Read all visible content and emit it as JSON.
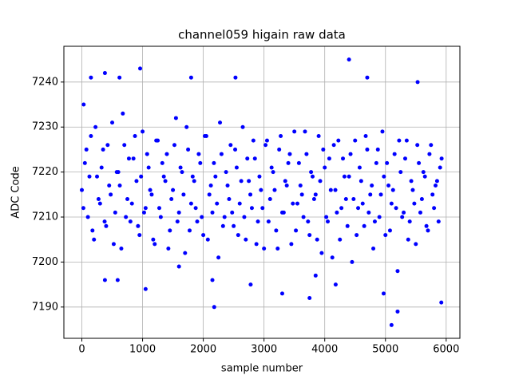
{
  "chart_data": {
    "type": "scatter",
    "title": "channel059 higain raw data",
    "x_label": "sample number",
    "y_label": "ADC Code",
    "color": "#0000ff",
    "grid": true,
    "xlim": [
      -296,
      6226
    ],
    "ylim": [
      7183.05,
      7247.95
    ],
    "xticks": [
      0,
      1000,
      2000,
      3000,
      4000,
      5000,
      6000
    ],
    "yticks": [
      7190,
      7200,
      7210,
      7220,
      7230,
      7240
    ],
    "x": [
      0,
      50,
      100,
      150,
      200,
      250,
      300,
      350,
      400,
      450,
      500,
      550,
      600,
      650,
      700,
      750,
      800,
      850,
      900,
      950,
      1000,
      1050,
      1100,
      1150,
      1200,
      1250,
      1300,
      1350,
      1400,
      1450,
      1500,
      1550,
      1600,
      1650,
      1700,
      1750,
      1800,
      1850,
      1900,
      1950,
      2000,
      2050,
      2100,
      2150,
      2200,
      2250,
      2300,
      2350,
      2400,
      2450,
      2500,
      2550,
      2600,
      2650,
      2700,
      2750,
      2800,
      2850,
      2900,
      2950,
      3000,
      3050,
      3100,
      3150,
      3200,
      3250,
      3300,
      3350,
      3400,
      3450,
      3500,
      3550,
      3600,
      3650,
      3700,
      3750,
      3800,
      3850,
      3900,
      3950,
      4000,
      4050,
      4100,
      4150,
      4200,
      4250,
      4300,
      4350,
      4400,
      4450,
      4500,
      4550,
      4600,
      4650,
      4700,
      4750,
      4800,
      4850,
      4900,
      4950,
      5000,
      5050,
      5100,
      5150,
      5200,
      5250,
      5300,
      5350,
      5400,
      5450,
      5500,
      5550,
      5600,
      5650,
      5700,
      5750,
      5800,
      5850,
      5900,
      25,
      75,
      125,
      175,
      225,
      275,
      325,
      375,
      425,
      475,
      525,
      575,
      625,
      675,
      725,
      775,
      825,
      875,
      925,
      975,
      1025,
      1075,
      1125,
      1175,
      1225,
      1275,
      1325,
      1375,
      1425,
      1475,
      1525,
      1575,
      1625,
      1675,
      1725,
      1775,
      1825,
      1875,
      1925,
      1975,
      2025,
      2075,
      2125,
      2175,
      2225,
      2275,
      2325,
      2375,
      2425,
      2475,
      2525,
      2575,
      2625,
      2675,
      2725,
      2775,
      2825,
      2875,
      2925,
      2975,
      3025,
      3075,
      3125,
      3175,
      3225,
      3275,
      3325,
      3375,
      3425,
      3475,
      3525,
      3575,
      3625,
      3675,
      3725,
      3775,
      3825,
      3875,
      3925,
      3975,
      4025,
      4075,
      4125,
      4175,
      4225,
      4275,
      4325,
      4375,
      4425,
      4475,
      4525,
      4575,
      4625,
      4675,
      4725,
      4775,
      4825,
      4875,
      4925,
      4975,
      5025,
      5075,
      5125,
      5175,
      5225,
      5275,
      5325,
      5375,
      5425,
      5475,
      5525,
      5575,
      5625,
      5675,
      5725,
      5775,
      5825,
      5875,
      5925,
      30,
      150,
      380,
      380,
      590,
      620,
      960,
      1050,
      1800,
      2180,
      2530,
      3750,
      4400,
      5100,
      5200,
      5530,
      5920,
      4970,
      4700,
      3300,
      2150,
      1600,
      3850,
      2780,
      4180
    ],
    "values": [
      7216,
      7222,
      7210,
      7228,
      7205,
      7219,
      7213,
      7225,
      7208,
      7217,
      7231,
      7211,
      7220,
      7203,
      7226,
      7214,
      7209,
      7223,
      7218,
      7206,
      7229,
      7212,
      7221,
      7215,
      7204,
      7227,
      7210,
      7219,
      7224,
      7207,
      7216,
      7232,
      7211,
      7220,
      7202,
      7225,
      7213,
      7218,
      7209,
      7222,
      7206,
      7228,
      7215,
      7211,
      7219,
      7201,
      7224,
      7210,
      7217,
      7226,
      7208,
      7221,
      7213,
      7230,
      7205,
      7218,
      7212,
      7223,
      7209,
      7216,
      7203,
      7227,
      7214,
      7220,
      7207,
      7225,
      7211,
      7218,
      7222,
      7204,
      7229,
      7213,
      7217,
      7210,
      7224,
      7206,
      7219,
      7215,
      7228,
      7202,
      7221,
      7209,
      7216,
      7226,
      7211,
      7205,
      7223,
      7214,
      7219,
      7200,
      7227,
      7212,
      7218,
      7208,
      7225,
      7215,
      7203,
      7222,
      7210,
      7229,
      7206,
      7217,
      7213,
      7224,
      7198,
      7220,
      7211,
      7227,
      7209,
      7216,
      7204,
      7222,
      7214,
      7219,
      7207,
      7226,
      7212,
      7218,
      7221,
      7212,
      7225,
      7219,
      7207,
      7230,
      7214,
      7221,
      7209,
      7226,
      7215,
      7204,
      7220,
      7217,
      7233,
      7210,
      7223,
      7213,
      7228,
      7208,
      7219,
      7211,
      7224,
      7216,
      7205,
      7227,
      7212,
      7222,
      7218,
      7203,
      7214,
      7226,
      7209,
      7221,
      7215,
      7230,
      7207,
      7219,
      7212,
      7224,
      7210,
      7228,
      7205,
      7217,
      7222,
      7213,
      7231,
      7208,
      7220,
      7214,
      7211,
      7225,
      7206,
      7218,
      7210,
      7223,
      7215,
      7227,
      7204,
      7219,
      7212,
      7226,
      7209,
      7221,
      7216,
      7203,
      7228,
      7211,
      7217,
      7224,
      7213,
      7207,
      7222,
      7215,
      7229,
      7209,
      7220,
      7214,
      7205,
      7218,
      7225,
      7210,
      7223,
      7201,
      7216,
      7227,
      7212,
      7219,
      7208,
      7224,
      7214,
      7206,
      7221,
      7213,
      7228,
      7211,
      7217,
      7209,
      7225,
      7215,
      7219,
      7222,
      7207,
      7216,
      7212,
      7227,
      7210,
      7223,
      7205,
      7218,
      7213,
      7226,
      7211,
      7220,
      7208,
      7224,
      7215,
      7217,
      7209,
      7223,
      7235,
      7241,
      7242,
      7196,
      7196,
      7241,
      7243,
      7194,
      7241,
      7190,
      7241,
      7192,
      7245,
      7186,
      7189,
      7240,
      7191,
      7193,
      7241,
      7193,
      7196,
      7199,
      7197,
      7195,
      7195
    ]
  }
}
